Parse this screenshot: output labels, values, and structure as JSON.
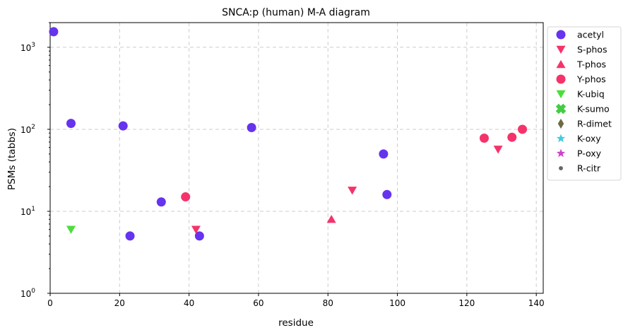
{
  "chart_data": {
    "type": "scatter",
    "title": "SNCA:p (human) M-A diagram",
    "xlabel": "residue",
    "ylabel": "PSMs (tabbs)",
    "xlim": [
      0,
      142
    ],
    "ylim": [
      1,
      2000
    ],
    "yscale": "log",
    "x_ticks": [
      "0",
      "20",
      "40",
      "60",
      "80",
      "100",
      "120",
      "140"
    ],
    "y_ticks": [
      "10",
      "10",
      "10",
      "10"
    ],
    "y_tick_exponents": [
      "0",
      "1",
      "2",
      "3"
    ],
    "grid": true,
    "legend_position": "outside-right",
    "series": [
      {
        "name": "acetyl",
        "color": "#6633ee",
        "marker": "circle",
        "points": [
          [
            1,
            1550
          ],
          [
            6,
            118
          ],
          [
            21,
            110
          ],
          [
            23,
            5
          ],
          [
            32,
            13
          ],
          [
            43,
            5
          ],
          [
            58,
            105
          ],
          [
            96,
            50
          ],
          [
            97,
            16
          ]
        ]
      },
      {
        "name": "S-phos",
        "color": "#f5336b",
        "marker": "triangle-down",
        "points": [
          [
            42,
            6
          ],
          [
            87,
            18
          ],
          [
            129,
            57
          ]
        ]
      },
      {
        "name": "T-phos",
        "color": "#f5336b",
        "marker": "triangle-up",
        "points": [
          [
            81,
            8
          ]
        ]
      },
      {
        "name": "Y-phos",
        "color": "#f5336b",
        "marker": "circle",
        "points": [
          [
            39,
            15
          ],
          [
            125,
            78
          ],
          [
            133,
            80
          ],
          [
            136,
            100
          ]
        ]
      },
      {
        "name": "K-ubiq",
        "color": "#4ddd3a",
        "marker": "triangle-down",
        "points": [
          [
            6,
            6
          ]
        ]
      },
      {
        "name": "K-sumo",
        "color": "#44cc44",
        "marker": "x",
        "points": []
      },
      {
        "name": "R-dimet",
        "color": "#6b6b44",
        "marker": "diamond",
        "points": []
      },
      {
        "name": "K-oxy",
        "color": "#44ccdd",
        "marker": "star",
        "points": []
      },
      {
        "name": "P-oxy",
        "color": "#cc44cc",
        "marker": "star",
        "points": []
      },
      {
        "name": "R-citr",
        "color": "#666666",
        "marker": "dot",
        "points": []
      }
    ]
  }
}
